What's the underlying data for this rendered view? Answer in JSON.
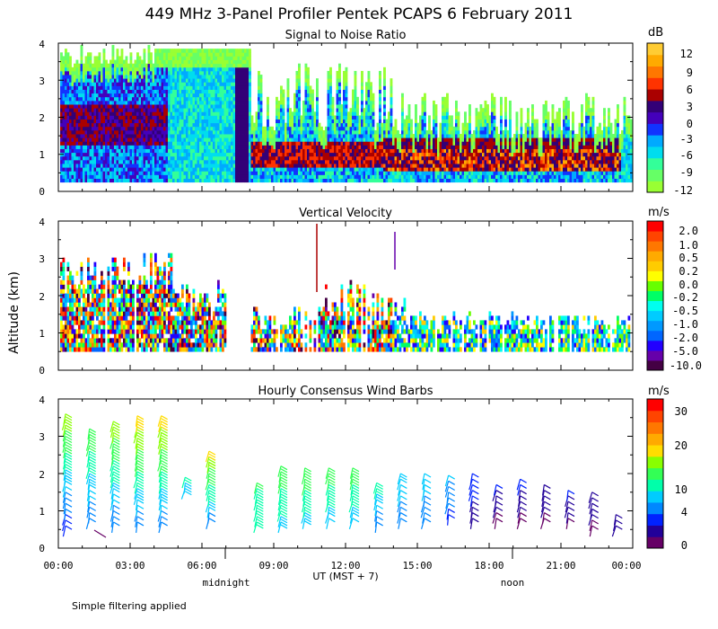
{
  "title": "449 MHz 3-Panel Profiler Pentek PCAPS  6 February 2011",
  "y_axis_label": "Altitude (km)",
  "x_axis_label": "UT  (MST + 7)",
  "midnight_label": "midnight",
  "noon_label": "noon",
  "footnote": "Simple filtering applied",
  "colors": {
    "snr": [
      "#99ff33",
      "#66ff66",
      "#33ff99",
      "#00ddee",
      "#00aaff",
      "#1133ff",
      "#4400bb",
      "#330077",
      "#aa0000",
      "#ff3300",
      "#ff7700",
      "#ffaa00",
      "#ffcc33"
    ],
    "vel": [
      "#440044",
      "#6600aa",
      "#2200ff",
      "#0066ff",
      "#0099ff",
      "#00ccff",
      "#00ffee",
      "#00ff66",
      "#66ff00",
      "#ffff00",
      "#ffcc00",
      "#ffaa00",
      "#ff7700",
      "#ff4400",
      "#ff0000"
    ],
    "wind": [
      "#660066",
      "#220099",
      "#0022ff",
      "#0088ff",
      "#00ccff",
      "#00ffaa",
      "#33ff55",
      "#88ff00",
      "#ffdd00",
      "#ffaa00",
      "#ff7700",
      "#ff4400",
      "#ff0000"
    ]
  },
  "chart_data": [
    {
      "type": "heatmap",
      "title": "Signal to Noise Ratio",
      "ylabel": "Altitude (km)",
      "xlabel": "UT  (MST + 7)",
      "ylim": [
        0,
        4
      ],
      "yticks": [
        "0",
        "1",
        "2",
        "3",
        "4"
      ],
      "xlim": [
        0,
        24
      ],
      "xticks": [
        "00:00",
        "03:00",
        "06:00",
        "09:00",
        "12:00",
        "15:00",
        "18:00",
        "21:00",
        "00:00"
      ],
      "colorbar_unit": "dB",
      "colorbar_ticks": [
        "12",
        "9",
        "6",
        "3",
        "0",
        "-3",
        "-6",
        "-9",
        "-12"
      ],
      "colorbar_range": [
        -12,
        14
      ]
    },
    {
      "type": "heatmap",
      "title": "Vertical Velocity",
      "ylabel": "Altitude (km)",
      "ylim": [
        0,
        4
      ],
      "yticks": [
        "0",
        "1",
        "2",
        "3",
        "4"
      ],
      "xlim": [
        0,
        24
      ],
      "colorbar_unit": "m/s",
      "colorbar_ticks": [
        "2.0",
        "1.0",
        "0.5",
        "0.2",
        "0.0",
        "-0.2",
        "-0.5",
        "-1.0",
        "-2.0",
        "-5.0",
        "-10.0"
      ]
    },
    {
      "type": "scatter",
      "title": "Hourly Consensus Wind Barbs",
      "ylabel": "Altitude (km)",
      "ylim": [
        0,
        4
      ],
      "yticks": [
        "0",
        "1",
        "2",
        "3",
        "4"
      ],
      "xlim": [
        0,
        24
      ],
      "colorbar_unit": "m/s",
      "colorbar_ticks": [
        "30",
        "20",
        "10",
        "4",
        "0"
      ],
      "colorbar_range": [
        0,
        34
      ],
      "hours": [
        0,
        1,
        2,
        3,
        4,
        5,
        6,
        8,
        9,
        10,
        11,
        12,
        13,
        14,
        15,
        16,
        17,
        18,
        19,
        20,
        21,
        22,
        23
      ],
      "profiles": [
        {
          "hour": 0,
          "zmin": 0.6,
          "zmax": 3.6,
          "top_speed": 20,
          "bottom_speed": 6
        },
        {
          "hour": 1,
          "zmin": 0.8,
          "zmax": 3.2,
          "top_speed": 18,
          "bottom_speed": 8
        },
        {
          "hour": 2,
          "zmin": 0.7,
          "zmax": 3.4,
          "top_speed": 20,
          "bottom_speed": 8
        },
        {
          "hour": 3,
          "zmin": 0.7,
          "zmax": 3.6,
          "top_speed": 22,
          "bottom_speed": 9
        },
        {
          "hour": 4,
          "zmin": 0.7,
          "zmax": 3.6,
          "top_speed": 22,
          "bottom_speed": 9
        },
        {
          "hour": 5,
          "zmin": 1.6,
          "zmax": 1.9,
          "top_speed": 14,
          "bottom_speed": 12
        },
        {
          "hour": 6,
          "zmin": 0.8,
          "zmax": 2.7,
          "top_speed": 22,
          "bottom_speed": 9
        },
        {
          "hour": 8,
          "zmin": 0.7,
          "zmax": 1.8,
          "top_speed": 16,
          "bottom_speed": 14
        },
        {
          "hour": 9,
          "zmin": 0.7,
          "zmax": 2.2,
          "top_speed": 18,
          "bottom_speed": 12
        },
        {
          "hour": 10,
          "zmin": 0.8,
          "zmax": 2.2,
          "top_speed": 18,
          "bottom_speed": 12
        },
        {
          "hour": 11,
          "zmin": 0.8,
          "zmax": 2.2,
          "top_speed": 18,
          "bottom_speed": 11
        },
        {
          "hour": 12,
          "zmin": 0.8,
          "zmax": 2.2,
          "top_speed": 18,
          "bottom_speed": 11
        },
        {
          "hour": 13,
          "zmin": 0.7,
          "zmax": 1.8,
          "top_speed": 14,
          "bottom_speed": 9
        },
        {
          "hour": 14,
          "zmin": 0.8,
          "zmax": 2.0,
          "top_speed": 12,
          "bottom_speed": 9
        },
        {
          "hour": 15,
          "zmin": 0.8,
          "zmax": 2.0,
          "top_speed": 12,
          "bottom_speed": 8
        },
        {
          "hour": 16,
          "zmin": 0.9,
          "zmax": 2.0,
          "top_speed": 11,
          "bottom_speed": 7
        },
        {
          "hour": 17,
          "zmin": 0.8,
          "zmax": 2.1,
          "top_speed": 8,
          "bottom_speed": 3
        },
        {
          "hour": 18,
          "zmin": 0.8,
          "zmax": 1.8,
          "top_speed": 6,
          "bottom_speed": 2
        },
        {
          "hour": 19,
          "zmin": 0.8,
          "zmax": 1.9,
          "top_speed": 6,
          "bottom_speed": 2
        },
        {
          "hour": 20,
          "zmin": 0.8,
          "zmax": 1.8,
          "top_speed": 5,
          "bottom_speed": 2
        },
        {
          "hour": 21,
          "zmin": 0.8,
          "zmax": 1.6,
          "top_speed": 6,
          "bottom_speed": 2
        },
        {
          "hour": 22,
          "zmin": 0.6,
          "zmax": 1.6,
          "top_speed": 5,
          "bottom_speed": 2
        },
        {
          "hour": 23,
          "zmin": 0.6,
          "zmax": 1.0,
          "top_speed": 4,
          "bottom_speed": 3
        }
      ]
    }
  ]
}
